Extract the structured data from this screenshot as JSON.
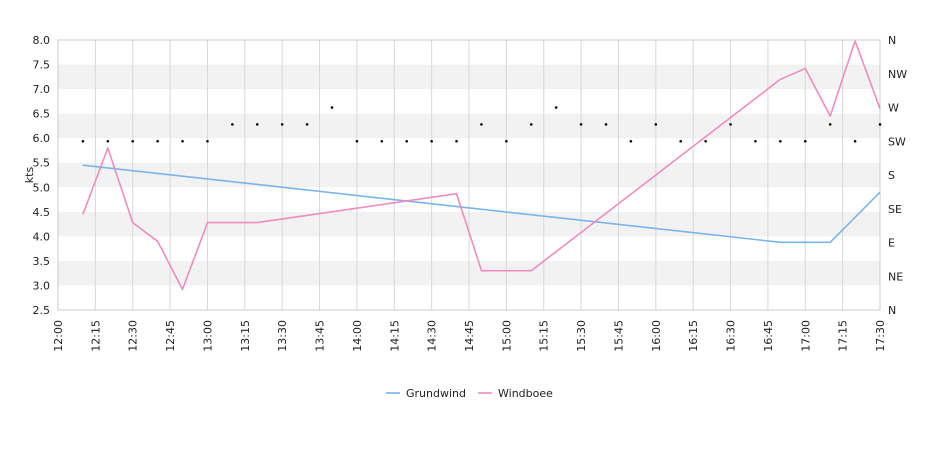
{
  "chart_data": {
    "type": "line",
    "ylabel": "kts",
    "ylim": [
      2.5,
      8.0
    ],
    "y_ticks": [
      "2.5",
      "3.0",
      "3.5",
      "4.0",
      "4.5",
      "5.0",
      "5.5",
      "6.0",
      "6.5",
      "7.0",
      "7.5",
      "8.0"
    ],
    "x_ticks": [
      "12:00",
      "12:15",
      "12:30",
      "12:45",
      "13:00",
      "13:15",
      "13:30",
      "13:45",
      "14:00",
      "14:15",
      "14:30",
      "14:45",
      "15:00",
      "15:15",
      "15:30",
      "15:45",
      "16:00",
      "16:15",
      "16:30",
      "16:45",
      "17:00",
      "17:15",
      "17:30"
    ],
    "y2_ticks": [
      "N",
      "NE",
      "E",
      "SE",
      "S",
      "SW",
      "W",
      "NW",
      "N"
    ],
    "grid": "horizontal alternating bands",
    "legend_position": "bottom",
    "series": [
      {
        "name": "Grundwind",
        "color": "#7ab4ea",
        "points": [
          {
            "t": "12:10",
            "v": 5.45
          },
          {
            "t": "16:50",
            "v": 3.88
          },
          {
            "t": "17:10",
            "v": 3.88
          },
          {
            "t": "17:30",
            "v": 4.9
          }
        ]
      },
      {
        "name": "Windboee",
        "color": "#f08cc0",
        "points": [
          {
            "t": "12:10",
            "v": 4.45
          },
          {
            "t": "12:20",
            "v": 5.8
          },
          {
            "t": "12:30",
            "v": 4.28
          },
          {
            "t": "12:40",
            "v": 3.9
          },
          {
            "t": "12:50",
            "v": 2.92
          },
          {
            "t": "13:00",
            "v": 4.28
          },
          {
            "t": "13:20",
            "v": 4.28
          },
          {
            "t": "14:40",
            "v": 4.87
          },
          {
            "t": "14:50",
            "v": 3.3
          },
          {
            "t": "15:10",
            "v": 3.3
          },
          {
            "t": "16:50",
            "v": 7.2
          },
          {
            "t": "17:00",
            "v": 7.42
          },
          {
            "t": "17:10",
            "v": 6.45
          },
          {
            "t": "17:20",
            "v": 7.98
          },
          {
            "t": "17:30",
            "v": 6.6
          }
        ]
      }
    ],
    "direction_markers": [
      {
        "t": "12:10",
        "dir": "SW"
      },
      {
        "t": "12:20",
        "dir": "SW"
      },
      {
        "t": "12:30",
        "dir": "SW"
      },
      {
        "t": "12:40",
        "dir": "SW"
      },
      {
        "t": "12:50",
        "dir": "SW"
      },
      {
        "t": "13:00",
        "dir": "SW"
      },
      {
        "t": "13:10",
        "dir": "SW-W"
      },
      {
        "t": "13:20",
        "dir": "SW-W"
      },
      {
        "t": "13:30",
        "dir": "SW-W"
      },
      {
        "t": "13:40",
        "dir": "SW-W"
      },
      {
        "t": "13:50",
        "dir": "W"
      },
      {
        "t": "14:00",
        "dir": "SW"
      },
      {
        "t": "14:10",
        "dir": "SW"
      },
      {
        "t": "14:20",
        "dir": "SW"
      },
      {
        "t": "14:30",
        "dir": "SW"
      },
      {
        "t": "14:40",
        "dir": "SW"
      },
      {
        "t": "14:50",
        "dir": "SW-W"
      },
      {
        "t": "15:00",
        "dir": "SW"
      },
      {
        "t": "15:10",
        "dir": "SW-W"
      },
      {
        "t": "15:20",
        "dir": "W"
      },
      {
        "t": "15:30",
        "dir": "SW-W"
      },
      {
        "t": "15:40",
        "dir": "SW-W"
      },
      {
        "t": "15:50",
        "dir": "SW"
      },
      {
        "t": "16:00",
        "dir": "SW-W"
      },
      {
        "t": "16:10",
        "dir": "SW"
      },
      {
        "t": "16:20",
        "dir": "SW"
      },
      {
        "t": "16:30",
        "dir": "SW-W"
      },
      {
        "t": "16:40",
        "dir": "SW"
      },
      {
        "t": "16:50",
        "dir": "SW"
      },
      {
        "t": "17:00",
        "dir": "SW"
      },
      {
        "t": "17:10",
        "dir": "SW-W"
      },
      {
        "t": "17:20",
        "dir": "SW"
      },
      {
        "t": "17:30",
        "dir": "SW-W"
      }
    ]
  }
}
